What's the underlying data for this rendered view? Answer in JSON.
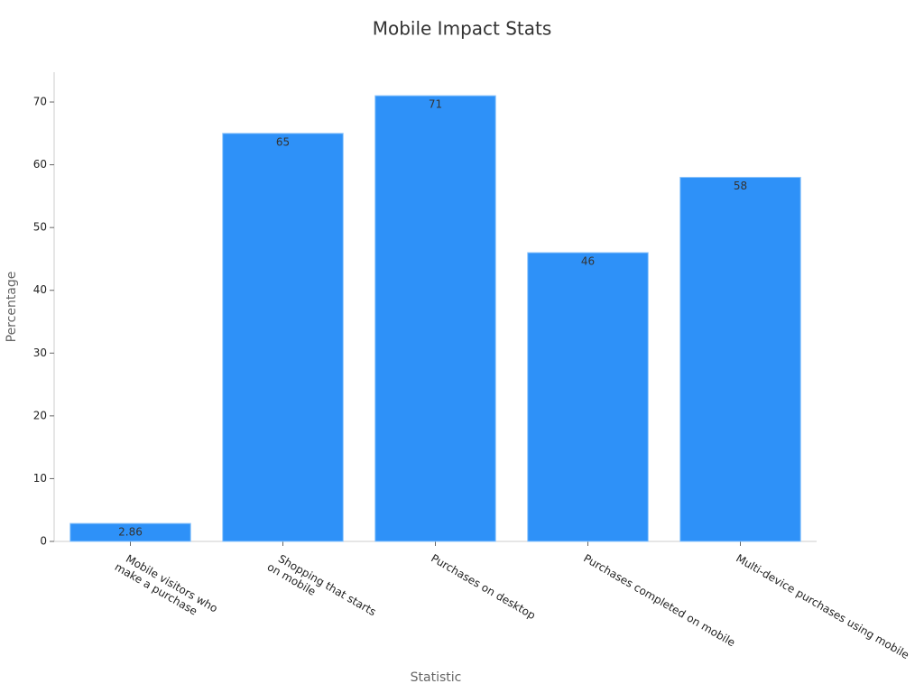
{
  "chart_data": {
    "type": "bar",
    "title": "Mobile Impact Stats",
    "x_label": "Statistic",
    "y_label": "Percentage",
    "categories": [
      "Mobile visitors who\nmake a purchase",
      "Shopping that starts\non mobile",
      "Purchases on desktop",
      "Purchases completed on mobile",
      "Multi-device purchases using mobile"
    ],
    "values": [
      2.86,
      65,
      71,
      46,
      58
    ],
    "color": "#2e91f8",
    "ylim": [
      0,
      74.75
    ],
    "yticks": [
      0,
      10,
      20,
      30,
      40,
      50,
      60,
      70
    ],
    "grid": false
  }
}
